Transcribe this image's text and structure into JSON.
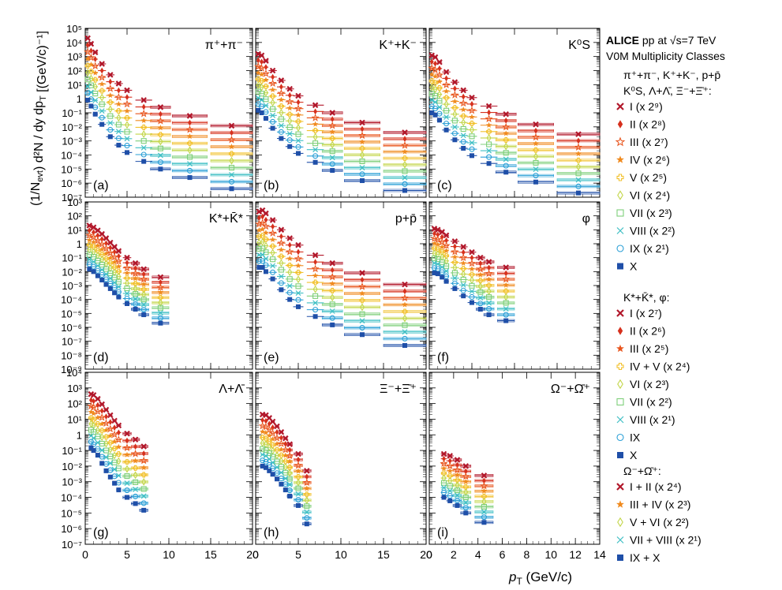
{
  "figure": {
    "header_line1_bold": "ALICE",
    "header_line1_rest": " pp at ",
    "sqrt_s": "√s",
    "energy": "=7 TeV",
    "header_line2": "V0M Multiplicity Classes",
    "xlabel_main": "p",
    "xlabel_sub": "T",
    "xlabel_unit": " (GeV/c)",
    "ylabel_left": "(1/N",
    "ylabel_evt": "evt",
    "ylabel_mid": ")",
    "ylabel_num": "d²N",
    "ylabel_den": "dy dp",
    "ylabel_den_sub": "T",
    "ylabel_unit": "[(GeV/c)⁻¹]"
  },
  "colors": {
    "I": "#b2182b",
    "II": "#d6301d",
    "III": "#e8541c",
    "IV": "#f08a1e",
    "V": "#f2c12e",
    "VI": "#c3d64a",
    "VII": "#7fcf7a",
    "VIII": "#3fbfc4",
    "IX": "#2a9fd6",
    "X": "#1f4fa8"
  },
  "legends": [
    {
      "header": [
        "π⁺+π⁻, K⁺+K⁻, p+p̄",
        "K⁰S, Λ+Λ̄, Ξ⁻+Ξ̄⁺:"
      ],
      "entries": [
        {
          "marker": "x",
          "color": "I",
          "label": "I (x 2⁹)"
        },
        {
          "marker": "diamond",
          "color": "II",
          "label": "II (x 2⁸)"
        },
        {
          "marker": "star-open",
          "color": "III",
          "label": "III (x 2⁷)"
        },
        {
          "marker": "star",
          "color": "IV",
          "label": "IV (x 2⁶)"
        },
        {
          "marker": "cross-open",
          "color": "V",
          "label": "V (x 2⁵)"
        },
        {
          "marker": "diamond-open",
          "color": "VI",
          "label": "VI (x 2⁴)"
        },
        {
          "marker": "square-open",
          "color": "VII",
          "label": "VII (x 2³)"
        },
        {
          "marker": "x-thin",
          "color": "VIII",
          "label": "VIII (x 2²)"
        },
        {
          "marker": "circle-open",
          "color": "IX",
          "label": "IX (x 2¹)"
        },
        {
          "marker": "square",
          "color": "X",
          "label": "X"
        }
      ]
    },
    {
      "header": [
        "K*+K̄*, φ:"
      ],
      "entries": [
        {
          "marker": "x",
          "color": "I",
          "label": "I (x 2⁷)"
        },
        {
          "marker": "diamond",
          "color": "II",
          "label": "II (x 2⁶)"
        },
        {
          "marker": "star",
          "color": "III",
          "label": "III (x 2⁵)"
        },
        {
          "marker": "cross-open",
          "color": "V",
          "label": "IV + V (x 2⁴)"
        },
        {
          "marker": "diamond-open",
          "color": "VI",
          "label": "VI (x 2³)"
        },
        {
          "marker": "square-open",
          "color": "VII",
          "label": "VII (x 2²)"
        },
        {
          "marker": "x-thin",
          "color": "VIII",
          "label": "VIII (x 2¹)"
        },
        {
          "marker": "circle-open",
          "color": "IX",
          "label": "IX"
        },
        {
          "marker": "square",
          "color": "X",
          "label": "X"
        }
      ]
    },
    {
      "header": [
        "Ω⁻+Ω̄⁺:"
      ],
      "entries": [
        {
          "marker": "x",
          "color": "I",
          "label": "I + II (x 2⁴)"
        },
        {
          "marker": "star",
          "color": "IV",
          "label": "III + IV (x 2³)"
        },
        {
          "marker": "diamond-open",
          "color": "VI",
          "label": "V + VI (x 2²)"
        },
        {
          "marker": "x-thin",
          "color": "VIII",
          "label": "VII + VIII (x 2¹)"
        },
        {
          "marker": "square",
          "color": "X",
          "label": "IX + X"
        }
      ]
    }
  ],
  "chart_data": [
    {
      "type": "scatter",
      "panel": "(a)",
      "particle": "π⁺+π⁻",
      "xlim": [
        0,
        20
      ],
      "ylog": true,
      "ylim": [
        1e-07,
        100000.0
      ],
      "class_X_points": [
        [
          0.3,
          0.8
        ],
        [
          0.7,
          0.3
        ],
        [
          1.2,
          0.08
        ],
        [
          2,
          0.015
        ],
        [
          3,
          0.002
        ],
        [
          4,
          0.0005
        ],
        [
          5,
          0.00015
        ],
        [
          7,
          3.5e-05
        ],
        [
          9,
          1e-05
        ],
        [
          12.5,
          2.5e-06
        ],
        [
          17.5,
          4e-07
        ]
      ],
      "class_I_points": [
        [
          0.3,
          20000
        ],
        [
          0.7,
          8000
        ],
        [
          1.2,
          2000
        ],
        [
          2,
          300
        ],
        [
          3,
          50
        ],
        [
          4,
          12
        ],
        [
          5,
          4
        ],
        [
          7,
          0.8
        ],
        [
          9,
          0.25
        ],
        [
          12.5,
          0.06
        ],
        [
          17.5,
          0.012
        ]
      ]
    },
    {
      "type": "scatter",
      "panel": "(b)",
      "particle": "K⁺+K⁻",
      "xlim": [
        0,
        20
      ],
      "ylog": true,
      "ylim": [
        1e-07,
        100000.0
      ],
      "class_X_points": [
        [
          0.3,
          0.15
        ],
        [
          0.7,
          0.1
        ],
        [
          1.2,
          0.04
        ],
        [
          2,
          0.008
        ],
        [
          3,
          0.0015
        ],
        [
          4,
          0.0004
        ],
        [
          5,
          0.00013
        ],
        [
          7,
          3e-05
        ],
        [
          9,
          8e-06
        ],
        [
          12.5,
          1.5e-06
        ],
        [
          17.5,
          3e-07
        ]
      ],
      "class_I_points": [
        [
          0.3,
          1500
        ],
        [
          0.7,
          1200
        ],
        [
          1.2,
          500
        ],
        [
          2,
          100
        ],
        [
          3,
          20
        ],
        [
          4,
          5
        ],
        [
          5,
          1.6
        ],
        [
          7,
          0.35
        ],
        [
          9,
          0.1
        ],
        [
          12.5,
          0.02
        ],
        [
          17.5,
          0.004
        ]
      ]
    },
    {
      "type": "scatter",
      "panel": "(c)",
      "particle": "K⁰S",
      "xlim": [
        0,
        20
      ],
      "ylog": true,
      "ylim": [
        1e-07,
        100000.0
      ],
      "class_X_points": [
        [
          0.3,
          0.1
        ],
        [
          0.7,
          0.07
        ],
        [
          1.2,
          0.03
        ],
        [
          2,
          0.006
        ],
        [
          3,
          0.0012
        ],
        [
          4,
          0.0003
        ],
        [
          5,
          9e-05
        ],
        [
          7,
          2.5e-05
        ],
        [
          9,
          6e-06
        ],
        [
          12.5,
          1.2e-06
        ],
        [
          17.5,
          2e-07
        ]
      ],
      "class_I_points": [
        [
          0.3,
          1200
        ],
        [
          0.7,
          900
        ],
        [
          1.2,
          400
        ],
        [
          2,
          80
        ],
        [
          3,
          15
        ],
        [
          4,
          4
        ],
        [
          5,
          1.2
        ],
        [
          7,
          0.3
        ],
        [
          9,
          0.08
        ],
        [
          12.5,
          0.015
        ],
        [
          17.5,
          0.003
        ]
      ]
    },
    {
      "type": "scatter",
      "panel": "(d)",
      "particle": "K*+K̄*",
      "xlim": [
        0,
        20
      ],
      "ylog": true,
      "ylim": [
        1e-09,
        1000.0
      ],
      "class_X_points": [
        [
          0.5,
          0.015
        ],
        [
          1,
          0.01
        ],
        [
          1.5,
          0.005
        ],
        [
          2,
          0.0025
        ],
        [
          2.5,
          0.0012
        ],
        [
          3,
          0.0006
        ],
        [
          3.5,
          0.0003
        ],
        [
          4,
          0.00015
        ],
        [
          5,
          5e-05
        ],
        [
          6,
          2e-05
        ],
        [
          7,
          8e-06
        ],
        [
          9,
          2e-06
        ]
      ],
      "class_I_points": [
        [
          0.5,
          20
        ],
        [
          1,
          15
        ],
        [
          1.5,
          9
        ],
        [
          2,
          5
        ],
        [
          2.5,
          2.5
        ],
        [
          3,
          1.2
        ],
        [
          3.5,
          0.6
        ],
        [
          4,
          0.3
        ],
        [
          5,
          0.1
        ],
        [
          6,
          0.04
        ],
        [
          7,
          0.015
        ],
        [
          9,
          0.004
        ]
      ]
    },
    {
      "type": "scatter",
      "panel": "(e)",
      "particle": "p+p̄",
      "xlim": [
        0,
        20
      ],
      "ylog": true,
      "ylim": [
        1e-09,
        1000.0
      ],
      "class_X_points": [
        [
          0.4,
          0.02
        ],
        [
          0.8,
          0.02
        ],
        [
          1.2,
          0.01
        ],
        [
          2,
          0.003
        ],
        [
          3,
          0.0005
        ],
        [
          4,
          0.0001
        ],
        [
          5,
          3e-05
        ],
        [
          7,
          6e-06
        ],
        [
          9,
          1.5e-06
        ],
        [
          12.5,
          3e-07
        ],
        [
          17.5,
          5e-08
        ]
      ],
      "class_I_points": [
        [
          0.4,
          200
        ],
        [
          0.8,
          250
        ],
        [
          1.2,
          150
        ],
        [
          2,
          50
        ],
        [
          3,
          10
        ],
        [
          4,
          2.5
        ],
        [
          5,
          0.8
        ],
        [
          7,
          0.15
        ],
        [
          9,
          0.04
        ],
        [
          12.5,
          0.008
        ],
        [
          17.5,
          0.0012
        ]
      ]
    },
    {
      "type": "scatter",
      "panel": "(f)",
      "particle": "φ",
      "xlim": [
        0,
        20
      ],
      "ylog": true,
      "ylim": [
        1e-09,
        1000.0
      ],
      "class_X_points": [
        [
          0.6,
          0.008
        ],
        [
          1,
          0.007
        ],
        [
          1.5,
          0.004
        ],
        [
          2,
          0.002
        ],
        [
          3,
          0.0006
        ],
        [
          4,
          0.00018
        ],
        [
          5,
          6e-05
        ],
        [
          6,
          2e-05
        ],
        [
          7,
          8e-06
        ],
        [
          9,
          3e-06
        ]
      ],
      "class_I_points": [
        [
          0.6,
          12
        ],
        [
          1,
          10
        ],
        [
          1.5,
          7
        ],
        [
          2,
          4
        ],
        [
          3,
          1.5
        ],
        [
          4,
          0.6
        ],
        [
          5,
          0.25
        ],
        [
          6,
          0.1
        ],
        [
          7,
          0.05
        ],
        [
          9,
          0.02
        ]
      ]
    },
    {
      "type": "scatter",
      "panel": "(g)",
      "particle": "Λ+Λ̄",
      "xlim": [
        0,
        20
      ],
      "ylog": true,
      "ylim": [
        1e-07,
        10000.0
      ],
      "class_X_points": [
        [
          0.7,
          0.15
        ],
        [
          1,
          0.1
        ],
        [
          1.5,
          0.05
        ],
        [
          2,
          0.015
        ],
        [
          2.5,
          0.005
        ],
        [
          3,
          0.002
        ],
        [
          3.5,
          0.0008
        ],
        [
          4,
          0.0003
        ],
        [
          5,
          0.0001
        ],
        [
          6,
          4e-05
        ],
        [
          7,
          1.5e-05
        ]
      ],
      "class_I_points": [
        [
          0.7,
          400
        ],
        [
          1,
          350
        ],
        [
          1.5,
          200
        ],
        [
          2,
          90
        ],
        [
          2.5,
          40
        ],
        [
          3,
          18
        ],
        [
          3.5,
          8
        ],
        [
          4,
          4
        ],
        [
          5,
          1.2
        ],
        [
          6,
          0.5
        ],
        [
          7,
          0.18
        ]
      ]
    },
    {
      "type": "scatter",
      "panel": "(h)",
      "particle": "Ξ⁻+Ξ̄⁺",
      "xlim": [
        0,
        20
      ],
      "ylog": true,
      "ylim": [
        1e-07,
        10000.0
      ],
      "class_X_points": [
        [
          0.8,
          0.01
        ],
        [
          1.2,
          0.008
        ],
        [
          1.6,
          0.005
        ],
        [
          2,
          0.003
        ],
        [
          2.5,
          0.0015
        ],
        [
          3,
          0.0007
        ],
        [
          3.5,
          0.0003
        ],
        [
          4,
          0.00012
        ],
        [
          5,
          3e-05
        ],
        [
          6,
          2e-06
        ]
      ],
      "class_I_points": [
        [
          0.8,
          20
        ],
        [
          1.2,
          18
        ],
        [
          1.6,
          12
        ],
        [
          2,
          7
        ],
        [
          2.5,
          3.5
        ],
        [
          3,
          1.5
        ],
        [
          3.5,
          0.6
        ],
        [
          4,
          0.25
        ],
        [
          5,
          0.06
        ],
        [
          6,
          0.005
        ]
      ]
    },
    {
      "type": "scatter",
      "panel": "(i)",
      "particle": "Ω⁻+Ω̄⁺",
      "xlim": [
        0,
        14
      ],
      "ylog": true,
      "ylim": [
        1e-07,
        10000.0
      ],
      "class_X_points": [
        [
          1.2,
          0.0001
        ],
        [
          1.7,
          6e-05
        ],
        [
          2.3,
          3e-05
        ],
        [
          3,
          1e-05
        ],
        [
          4.5,
          2.5e-06
        ]
      ],
      "class_I_points": [
        [
          1.2,
          0.06
        ],
        [
          1.7,
          0.045
        ],
        [
          2.3,
          0.025
        ],
        [
          3,
          0.01
        ],
        [
          4.5,
          0.0025
        ]
      ]
    }
  ],
  "x_axis": {
    "ticks_0_20": [
      "0",
      "5",
      "10",
      "15",
      "20"
    ],
    "ticks_0_14": [
      "0",
      "2",
      "4",
      "6",
      "8",
      "10",
      "12",
      "14"
    ]
  }
}
